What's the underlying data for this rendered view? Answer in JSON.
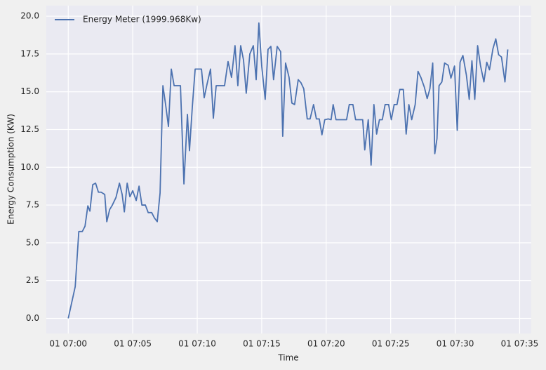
{
  "chart_data": {
    "type": "line",
    "title": null,
    "x_label": "Time",
    "y_label": "Energy Consumption (KW)",
    "x": [
      0,
      0.54,
      0.82,
      1.09,
      1.3,
      1.52,
      1.68,
      1.9,
      2.12,
      2.34,
      2.55,
      2.83,
      2.99,
      3.21,
      3.42,
      3.7,
      3.97,
      4.18,
      4.35,
      4.57,
      4.78,
      5.0,
      5.27,
      5.49,
      5.71,
      5.98,
      6.2,
      6.47,
      6.68,
      6.9,
      7.12,
      7.34,
      7.55,
      7.77,
      7.99,
      8.21,
      8.42,
      8.7,
      8.97,
      9.24,
      9.4,
      9.62,
      9.84,
      10.05,
      10.33,
      10.54,
      10.76,
      11.03,
      11.25,
      11.47,
      11.74,
      12.12,
      12.39,
      12.66,
      12.93,
      13.15,
      13.37,
      13.59,
      13.8,
      14.08,
      14.35,
      14.57,
      14.78,
      15.0,
      15.27,
      15.49,
      15.71,
      15.92,
      16.2,
      16.47,
      16.63,
      16.85,
      17.12,
      17.34,
      17.55,
      17.83,
      18.04,
      18.26,
      18.53,
      18.75,
      19.02,
      19.24,
      19.46,
      19.67,
      19.89,
      20.16,
      20.38,
      20.54,
      20.76,
      21.03,
      21.3,
      21.58,
      21.79,
      22.07,
      22.28,
      22.55,
      22.83,
      22.99,
      23.26,
      23.48,
      23.7,
      23.91,
      24.13,
      24.35,
      24.57,
      24.84,
      25.05,
      25.27,
      25.49,
      25.71,
      25.98,
      26.2,
      26.41,
      26.63,
      26.9,
      27.12,
      27.34,
      27.61,
      27.83,
      28.04,
      28.26,
      28.42,
      28.59,
      28.75,
      28.97,
      29.18,
      29.46,
      29.67,
      29.95,
      30.16,
      30.38,
      30.6,
      30.87,
      31.09,
      31.3,
      31.52,
      31.74,
      31.96,
      32.23,
      32.45,
      32.66,
      32.93,
      33.15,
      33.37,
      33.59,
      33.86,
      34.08
    ],
    "series": [
      {
        "name": "Energy Meter (1999.968Kw)",
        "color": "#4c72b0",
        "values": [
          0,
          2.1,
          5.75,
          5.75,
          6.1,
          7.45,
          7.1,
          8.85,
          8.95,
          8.35,
          8.35,
          8.2,
          6.4,
          7.2,
          7.5,
          8.0,
          8.95,
          8.2,
          7.05,
          8.95,
          8.05,
          8.45,
          7.8,
          8.75,
          7.5,
          7.5,
          7.0,
          7.0,
          6.65,
          6.4,
          8.3,
          15.4,
          14.15,
          12.7,
          16.5,
          15.4,
          15.4,
          15.4,
          8.9,
          13.5,
          11.1,
          14.0,
          16.5,
          16.5,
          16.5,
          14.6,
          15.5,
          16.5,
          13.25,
          15.4,
          15.4,
          15.4,
          17.0,
          15.95,
          18.05,
          15.4,
          18.05,
          17.1,
          14.9,
          17.5,
          18.05,
          15.8,
          19.55,
          16.7,
          14.5,
          17.8,
          18.0,
          15.8,
          18.0,
          17.65,
          12.05,
          16.9,
          15.95,
          14.25,
          14.15,
          15.8,
          15.6,
          15.2,
          13.2,
          13.2,
          14.15,
          13.2,
          13.2,
          12.15,
          13.15,
          13.2,
          13.15,
          14.15,
          13.15,
          13.15,
          13.15,
          13.15,
          14.15,
          14.15,
          13.15,
          13.15,
          13.15,
          11.15,
          13.15,
          10.15,
          14.15,
          12.2,
          13.15,
          13.15,
          14.15,
          14.15,
          13.15,
          14.15,
          14.15,
          15.15,
          15.15,
          12.2,
          14.15,
          13.15,
          14.15,
          16.35,
          15.95,
          15.3,
          14.55,
          15.2,
          16.9,
          10.9,
          11.9,
          15.4,
          15.65,
          16.9,
          16.75,
          15.9,
          16.7,
          12.45,
          16.95,
          17.4,
          16.1,
          14.5,
          17.05,
          14.5,
          18.05,
          16.75,
          15.65,
          16.95,
          16.45,
          17.85,
          18.5,
          17.45,
          17.3,
          15.65,
          17.8
        ]
      }
    ],
    "xlim": [
      -1.7,
      35.9
    ],
    "xticks": [
      {
        "value": 0,
        "label": "01 07:00"
      },
      {
        "value": 5,
        "label": "01 07:05"
      },
      {
        "value": 10,
        "label": "01 07:10"
      },
      {
        "value": 15,
        "label": "01 07:15"
      },
      {
        "value": 20,
        "label": "01 07:20"
      },
      {
        "value": 25,
        "label": "01 07:25"
      },
      {
        "value": 30,
        "label": "01 07:30"
      },
      {
        "value": 35,
        "label": "01 07:35"
      }
    ],
    "ylim": [
      -1.0,
      20.7
    ],
    "yticks": [
      {
        "value": 0,
        "label": "0.0"
      },
      {
        "value": 2.5,
        "label": "2.5"
      },
      {
        "value": 5,
        "label": "5.0"
      },
      {
        "value": 7.5,
        "label": "7.5"
      },
      {
        "value": 10,
        "label": "10.0"
      },
      {
        "value": 12.5,
        "label": "12.5"
      },
      {
        "value": 15,
        "label": "15.0"
      },
      {
        "value": 17.5,
        "label": "17.5"
      },
      {
        "value": 20,
        "label": "20.0"
      }
    ],
    "grid": true,
    "legend": "upper left"
  }
}
